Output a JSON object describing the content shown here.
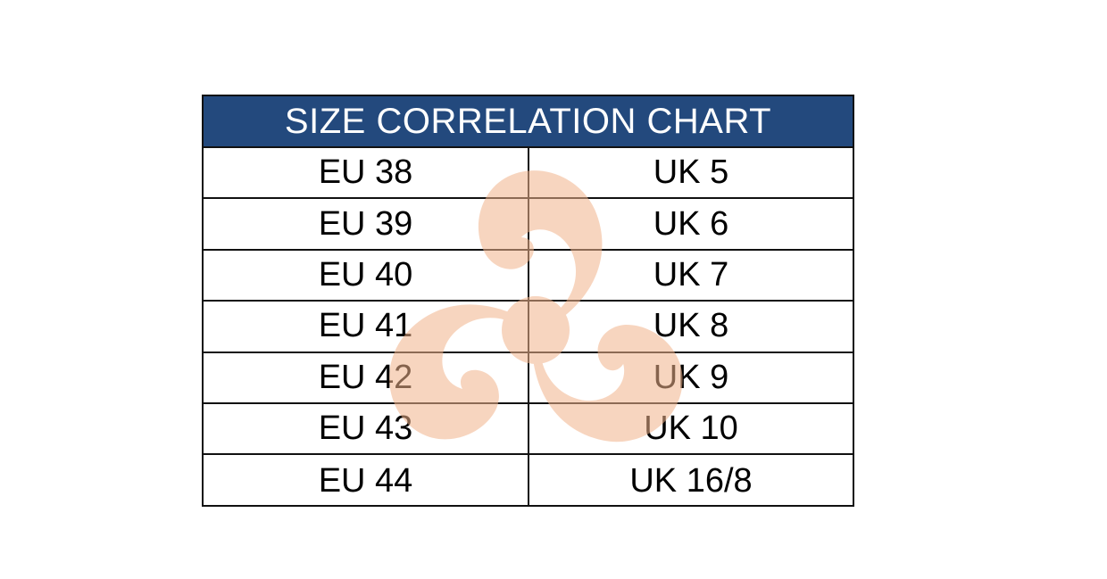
{
  "title": "SIZE CORRELATION CHART",
  "rows": [
    {
      "eu": "EU 38",
      "uk": "UK 5"
    },
    {
      "eu": "EU 39",
      "uk": "UK 6"
    },
    {
      "eu": "EU 40",
      "uk": "UK 7"
    },
    {
      "eu": "EU 41",
      "uk": "UK 8"
    },
    {
      "eu": "EU 42",
      "uk": "UK 9"
    },
    {
      "eu": "EU 43",
      "uk": "UK 10"
    },
    {
      "eu": "EU 44",
      "uk": "UK 16/8"
    }
  ],
  "colors": {
    "header_background": "#23497d",
    "header_text": "#ffffff",
    "watermark": "#f2b48c"
  },
  "watermark_icon": "triskelion-logo-icon"
}
